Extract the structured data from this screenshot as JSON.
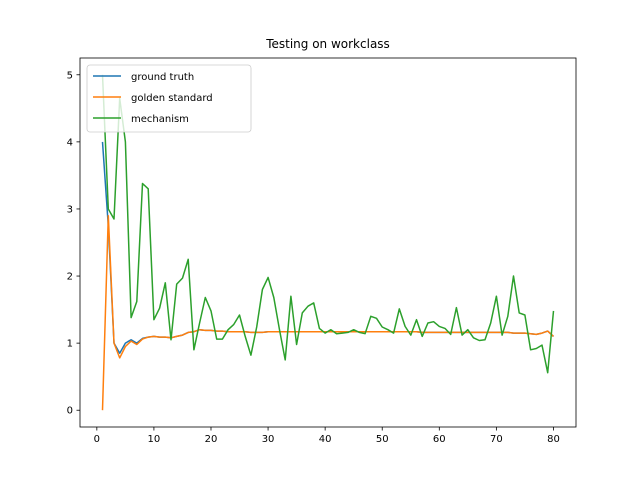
{
  "chart_data": {
    "type": "line",
    "title": "Testing on workclass",
    "xlabel": "",
    "ylabel": "",
    "xlim": [
      -2.95,
      83.95
    ],
    "ylim": [
      -0.25,
      5.25
    ],
    "xticks": [
      0,
      10,
      20,
      30,
      40,
      50,
      60,
      70,
      80
    ],
    "yticks": [
      0,
      1,
      2,
      3,
      4,
      5
    ],
    "grid": false,
    "legend_position": "top-left",
    "x": [
      1,
      2,
      3,
      4,
      5,
      6,
      7,
      8,
      9,
      10,
      11,
      12,
      13,
      14,
      15,
      16,
      17,
      18,
      19,
      20,
      21,
      22,
      23,
      24,
      25,
      26,
      27,
      28,
      29,
      30,
      31,
      32,
      33,
      34,
      35,
      36,
      37,
      38,
      39,
      40,
      41,
      42,
      43,
      44,
      45,
      46,
      47,
      48,
      49,
      50,
      51,
      52,
      53,
      54,
      55,
      56,
      57,
      58,
      59,
      60,
      61,
      62,
      63,
      64,
      65,
      66,
      67,
      68,
      69,
      70,
      71,
      72,
      73,
      74,
      75,
      76,
      77,
      78,
      79,
      80
    ],
    "series": [
      {
        "name": "ground truth",
        "color": "#1f77b4",
        "values": [
          4.0,
          2.75,
          1.0,
          0.85,
          1.0,
          1.05,
          1.0,
          1.07,
          1.09,
          1.1,
          1.09,
          1.09,
          1.08,
          1.1,
          1.12,
          1.16,
          1.17,
          1.2,
          1.19,
          1.19,
          1.18,
          1.18,
          1.17,
          1.17,
          1.17,
          1.17,
          1.16,
          1.16,
          1.16,
          1.17,
          1.17,
          1.17,
          1.17,
          1.17,
          1.17,
          1.17,
          1.17,
          1.17,
          1.17,
          1.17,
          1.17,
          1.17,
          1.17,
          1.17,
          1.17,
          1.17,
          1.17,
          1.17,
          1.17,
          1.17,
          1.17,
          1.17,
          1.17,
          1.17,
          1.17,
          1.17,
          1.16,
          1.16,
          1.16,
          1.16,
          1.16,
          1.16,
          1.16,
          1.16,
          1.16,
          1.16,
          1.16,
          1.16,
          1.16,
          1.16,
          1.16,
          1.16,
          1.15,
          1.15,
          1.15,
          1.14,
          1.13,
          1.15,
          1.18,
          1.1
        ]
      },
      {
        "name": "golden standard",
        "color": "#ff7f0e",
        "values": [
          0.0,
          2.9,
          1.0,
          0.78,
          0.95,
          1.03,
          0.98,
          1.06,
          1.09,
          1.1,
          1.09,
          1.09,
          1.08,
          1.1,
          1.12,
          1.16,
          1.17,
          1.2,
          1.19,
          1.19,
          1.18,
          1.18,
          1.17,
          1.17,
          1.17,
          1.17,
          1.16,
          1.16,
          1.16,
          1.17,
          1.17,
          1.17,
          1.17,
          1.17,
          1.17,
          1.17,
          1.17,
          1.17,
          1.17,
          1.17,
          1.17,
          1.17,
          1.17,
          1.17,
          1.17,
          1.17,
          1.17,
          1.17,
          1.17,
          1.17,
          1.17,
          1.17,
          1.17,
          1.17,
          1.17,
          1.17,
          1.16,
          1.16,
          1.16,
          1.16,
          1.16,
          1.16,
          1.16,
          1.16,
          1.16,
          1.16,
          1.16,
          1.16,
          1.16,
          1.16,
          1.16,
          1.16,
          1.15,
          1.15,
          1.15,
          1.14,
          1.13,
          1.15,
          1.18,
          1.1
        ]
      },
      {
        "name": "mechanism",
        "color": "#2ca02c",
        "values": [
          5.0,
          3.0,
          2.85,
          4.65,
          4.0,
          1.38,
          1.62,
          3.38,
          3.3,
          1.35,
          1.52,
          1.9,
          1.05,
          1.88,
          1.97,
          2.25,
          0.9,
          1.3,
          1.68,
          1.48,
          1.06,
          1.06,
          1.2,
          1.28,
          1.42,
          1.1,
          0.82,
          1.24,
          1.8,
          1.98,
          1.68,
          1.2,
          0.75,
          1.7,
          0.98,
          1.45,
          1.55,
          1.6,
          1.22,
          1.15,
          1.2,
          1.14,
          1.15,
          1.16,
          1.2,
          1.16,
          1.14,
          1.4,
          1.37,
          1.24,
          1.2,
          1.15,
          1.51,
          1.25,
          1.12,
          1.35,
          1.1,
          1.3,
          1.32,
          1.25,
          1.22,
          1.13,
          1.53,
          1.12,
          1.2,
          1.08,
          1.04,
          1.05,
          1.3,
          1.7,
          1.12,
          1.4,
          2.0,
          1.45,
          1.42,
          0.9,
          0.92,
          0.97,
          0.56,
          1.48
        ]
      }
    ]
  }
}
